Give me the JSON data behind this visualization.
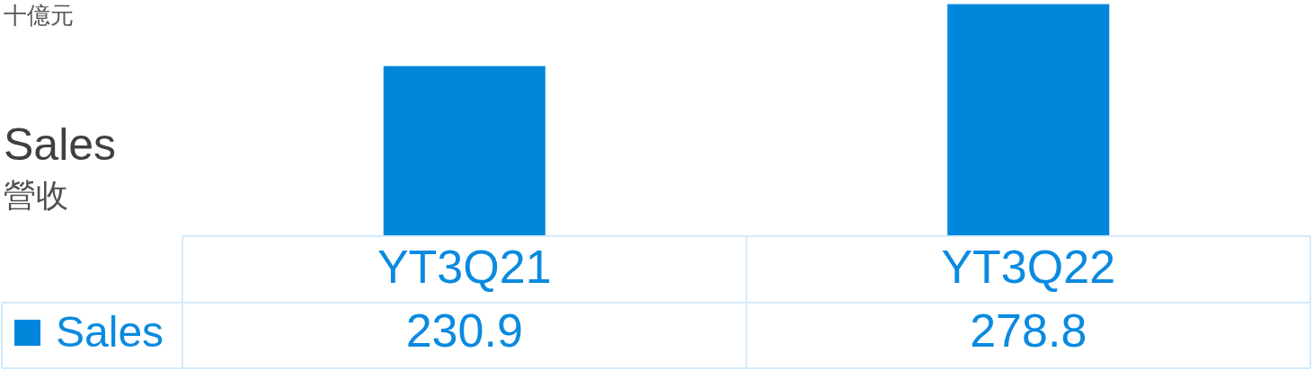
{
  "chart_data": {
    "type": "bar",
    "title": "Sales",
    "subtitle": "營收",
    "ylabel": "十億元",
    "categories": [
      "YT3Q21",
      "YT3Q22"
    ],
    "series": [
      {
        "name": "Sales",
        "color": "#0087dc",
        "values": [
          230.9,
          278.8
        ]
      }
    ],
    "ylim": [
      100,
      282
    ],
    "data_labels": true,
    "legend": "bottom left",
    "tick_labels": "x"
  }
}
